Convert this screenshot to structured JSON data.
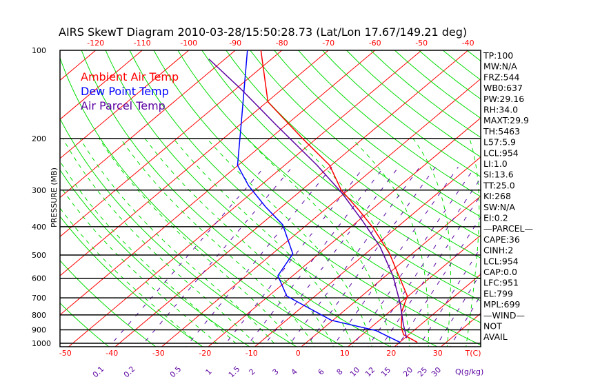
{
  "chart_data": {
    "type": "line",
    "title": "AIRS SkewT Diagram 2010-03-28/15:50:28.73 (Lat/Lon 17.67/149.21 deg)",
    "ylabel": "PRESSURE (MB)",
    "xlabel": "T(C)",
    "mixing_ratio_label": "Q(g/kg)",
    "pressure_ticks": [
      100,
      200,
      300,
      400,
      500,
      600,
      700,
      800,
      900,
      1000
    ],
    "pressure_range": [
      100,
      1050
    ],
    "top_temp_ticks": [
      -120,
      -110,
      -100,
      -90,
      -80,
      -70,
      -60,
      -50,
      -40
    ],
    "bottom_temp_ticks": [
      -50,
      -40,
      -30,
      -20,
      -10,
      0,
      10,
      20,
      30
    ],
    "mixing_ratio_ticks": [
      "0.1",
      "0.2",
      "0.5",
      "1",
      "1.5",
      "2",
      "3",
      "4",
      "6",
      "8",
      "10",
      "12",
      "15",
      "20",
      "25",
      "30"
    ],
    "legend": [
      {
        "name": "Ambient Air Temp",
        "color": "#ff0000"
      },
      {
        "name": "Dew Point Temp",
        "color": "#0000ff"
      },
      {
        "name": "Air Parcel Temp",
        "color": "#5a00a0"
      }
    ],
    "series": [
      {
        "name": "Ambient Air Temp",
        "color": "#ff0000",
        "p": [
          100,
          150,
          200,
          247,
          300,
          351,
          402,
          495,
          690,
          780,
          882,
          935,
          993
        ],
        "t": [
          -84.5,
          -69.8,
          -53,
          -40.3,
          -31.5,
          -22.6,
          -15.2,
          -4.8,
          9.8,
          12.6,
          16.5,
          18.9,
          23.8
        ]
      },
      {
        "name": "Dew Point Temp",
        "color": "#0000ff",
        "p": [
          100,
          179,
          247,
          290,
          342,
          394,
          495,
          588,
          690,
          835,
          905,
          993
        ],
        "t": [
          -87.4,
          -69.8,
          -60.1,
          -52.5,
          -43.5,
          -35.2,
          -25.6,
          -23.2,
          -16.1,
          -0.3,
          11.9,
          20.1
        ]
      },
      {
        "name": "Air Parcel Temp",
        "color": "#5a00a0",
        "p": [
          107,
          136,
          179,
          247,
          307,
          381,
          470,
          588,
          730,
          860,
          960
        ],
        "t": [
          -93.5,
          -78.7,
          -62.4,
          -43,
          -30.6,
          -19.2,
          -8.5,
          1.5,
          10.1,
          16.1,
          20.4
        ]
      }
    ],
    "background_lines": {
      "isotherm_color": "#ff0000",
      "dry_adiabat_color": "#00dd00",
      "moist_adiabat_color": "#00dd00",
      "mixing_ratio_color": "#5a00a0"
    },
    "indices": [
      "TP:100",
      "MW:N/A",
      "FRZ:544",
      "WB0:637",
      "PW:29.16",
      "RH:34.0",
      "MAXT:29.9",
      "TH:5463",
      "L57:5.9",
      "LCL:954",
      "LI:1.0",
      "SI:13.6",
      "TT:25.0",
      "KI:268",
      "SW:N/A",
      "EI:0.2",
      "—PARCEL—",
      "CAPE:36",
      "CINH:2",
      "LCL:954",
      "CAP:0.0",
      "LFC:951",
      "EL:799",
      "MPL:699",
      "—WIND—",
      "NOT",
      "AVAIL"
    ]
  }
}
